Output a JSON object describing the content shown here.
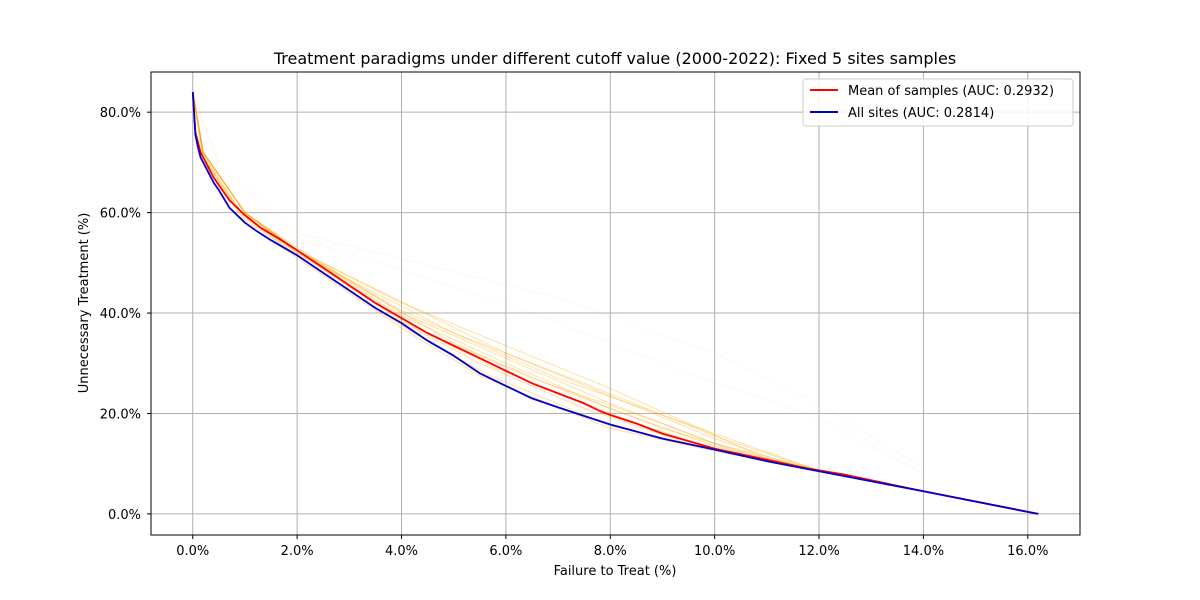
{
  "chart_data": {
    "type": "line",
    "title": "Treatment paradigms under different cutoff value (2000-2022): Fixed 5 sites samples",
    "xlabel": "Failure to Treat (%)",
    "ylabel": "Unnecessary Treatment (%)",
    "xlim": [
      -0.008,
      0.17
    ],
    "ylim": [
      -0.042,
      0.88
    ],
    "xticks": [
      0.0,
      0.02,
      0.04,
      0.06,
      0.08,
      0.1,
      0.12,
      0.14,
      0.16
    ],
    "xtick_labels": [
      "0.0%",
      "2.0%",
      "4.0%",
      "6.0%",
      "8.0%",
      "10.0%",
      "12.0%",
      "14.0%",
      "16.0%"
    ],
    "yticks": [
      0.0,
      0.2,
      0.4,
      0.6,
      0.8
    ],
    "ytick_labels": [
      "0.0%",
      "20.0%",
      "40.0%",
      "60.0%",
      "80.0%"
    ],
    "grid": true,
    "legend_position": "top-right",
    "series": [
      {
        "name": "Mean of samples (AUC: 0.2932)",
        "color": "#ff0000",
        "x": [
          0.0,
          0.0005,
          0.001,
          0.0015,
          0.002,
          0.003,
          0.004,
          0.005,
          0.007,
          0.01,
          0.013,
          0.017,
          0.02,
          0.025,
          0.03,
          0.035,
          0.04,
          0.045,
          0.05,
          0.055,
          0.058,
          0.06,
          0.065,
          0.07,
          0.075,
          0.078,
          0.08,
          0.085,
          0.09,
          0.095,
          0.1,
          0.11,
          0.118,
          0.125,
          0.14,
          0.162
        ],
        "y": [
          0.84,
          0.76,
          0.74,
          0.72,
          0.71,
          0.69,
          0.67,
          0.655,
          0.625,
          0.595,
          0.57,
          0.545,
          0.525,
          0.49,
          0.455,
          0.42,
          0.39,
          0.36,
          0.335,
          0.31,
          0.295,
          0.285,
          0.26,
          0.24,
          0.22,
          0.205,
          0.197,
          0.18,
          0.16,
          0.145,
          0.13,
          0.108,
          0.09,
          0.078,
          0.045,
          0.0
        ]
      },
      {
        "name": "All sites (AUC: 0.2814)",
        "color": "#0000cc",
        "x": [
          0.0,
          0.0005,
          0.001,
          0.0015,
          0.002,
          0.003,
          0.004,
          0.005,
          0.007,
          0.01,
          0.012,
          0.015,
          0.02,
          0.025,
          0.03,
          0.035,
          0.04,
          0.045,
          0.05,
          0.055,
          0.06,
          0.065,
          0.07,
          0.075,
          0.08,
          0.09,
          0.1,
          0.11,
          0.12,
          0.13,
          0.14,
          0.162
        ],
        "y": [
          0.84,
          0.755,
          0.73,
          0.71,
          0.7,
          0.68,
          0.66,
          0.645,
          0.61,
          0.58,
          0.565,
          0.545,
          0.515,
          0.48,
          0.445,
          0.41,
          0.38,
          0.345,
          0.315,
          0.28,
          0.255,
          0.23,
          0.212,
          0.195,
          0.178,
          0.15,
          0.128,
          0.105,
          0.085,
          0.065,
          0.045,
          0.0
        ]
      }
    ],
    "sample_series_color": "#ffa500",
    "sample_series": [
      {
        "x": [
          0.0,
          0.002,
          0.01,
          0.02,
          0.04,
          0.055,
          0.08,
          0.1,
          0.12,
          0.14,
          0.162
        ],
        "y": [
          0.84,
          0.71,
          0.58,
          0.51,
          0.37,
          0.275,
          0.17,
          0.125,
          0.085,
          0.045,
          0.0
        ]
      },
      {
        "x": [
          0.0,
          0.002,
          0.01,
          0.02,
          0.04,
          0.056,
          0.08,
          0.1,
          0.12,
          0.14,
          0.162
        ],
        "y": [
          0.84,
          0.71,
          0.585,
          0.515,
          0.375,
          0.28,
          0.175,
          0.128,
          0.086,
          0.045,
          0.0
        ]
      },
      {
        "x": [
          0.0,
          0.002,
          0.01,
          0.02,
          0.04,
          0.058,
          0.085,
          0.1,
          0.12,
          0.14,
          0.162
        ],
        "y": [
          0.84,
          0.715,
          0.59,
          0.52,
          0.385,
          0.29,
          0.18,
          0.13,
          0.086,
          0.045,
          0.0
        ]
      },
      {
        "x": [
          0.0,
          0.002,
          0.01,
          0.02,
          0.04,
          0.06,
          0.08,
          0.1,
          0.12,
          0.14,
          0.162
        ],
        "y": [
          0.84,
          0.72,
          0.6,
          0.525,
          0.395,
          0.3,
          0.21,
          0.135,
          0.087,
          0.045,
          0.0
        ]
      },
      {
        "x": [
          0.0,
          0.002,
          0.01,
          0.02,
          0.04,
          0.06,
          0.08,
          0.1,
          0.12,
          0.14,
          0.162
        ],
        "y": [
          0.84,
          0.72,
          0.6,
          0.53,
          0.4,
          0.31,
          0.22,
          0.14,
          0.088,
          0.045,
          0.0
        ]
      },
      {
        "x": [
          0.0,
          0.002,
          0.01,
          0.02,
          0.05,
          0.07,
          0.09,
          0.11,
          0.12,
          0.14,
          0.162
        ],
        "y": [
          0.84,
          0.72,
          0.6,
          0.525,
          0.34,
          0.25,
          0.17,
          0.11,
          0.088,
          0.045,
          0.0
        ]
      },
      {
        "x": [
          0.0,
          0.002,
          0.01,
          0.02,
          0.06,
          0.1,
          0.115,
          0.12,
          0.14,
          0.162
        ],
        "y": [
          0.84,
          0.72,
          0.6,
          0.525,
          0.32,
          0.15,
          0.098,
          0.086,
          0.045,
          0.0
        ]
      },
      {
        "x": [
          0.0,
          0.002,
          0.01,
          0.02,
          0.05,
          0.075,
          0.1,
          0.12,
          0.14,
          0.162
        ],
        "y": [
          0.84,
          0.72,
          0.6,
          0.52,
          0.36,
          0.26,
          0.155,
          0.086,
          0.045,
          0.0
        ]
      },
      {
        "x": [
          0.0,
          0.002,
          0.01,
          0.02,
          0.04,
          0.08,
          0.11,
          0.12,
          0.14,
          0.162
        ],
        "y": [
          0.84,
          0.72,
          0.6,
          0.525,
          0.42,
          0.25,
          0.11,
          0.087,
          0.045,
          0.0
        ]
      },
      {
        "x": [
          0.0,
          0.002,
          0.01,
          0.02,
          0.04,
          0.07,
          0.1,
          0.12,
          0.14,
          0.162
        ],
        "y": [
          0.84,
          0.72,
          0.6,
          0.525,
          0.405,
          0.27,
          0.16,
          0.086,
          0.045,
          0.0
        ]
      },
      {
        "x": [
          0.0,
          0.002,
          0.01,
          0.02,
          0.045,
          0.065,
          0.09,
          0.105,
          0.12,
          0.14,
          0.162
        ],
        "y": [
          0.84,
          0.72,
          0.6,
          0.52,
          0.36,
          0.27,
          0.18,
          0.12,
          0.087,
          0.045,
          0.0
        ]
      },
      {
        "x": [
          0.0,
          0.002,
          0.01,
          0.02,
          0.035,
          0.055,
          0.075,
          0.095,
          0.12,
          0.14,
          0.162
        ],
        "y": [
          0.84,
          0.71,
          0.59,
          0.515,
          0.41,
          0.3,
          0.21,
          0.14,
          0.086,
          0.045,
          0.0
        ]
      }
    ],
    "faint_series": [
      {
        "x": [
          0.0,
          0.005,
          0.02,
          0.07,
          0.1,
          0.12,
          0.14
        ],
        "y": [
          0.84,
          0.7,
          0.56,
          0.43,
          0.32,
          0.22,
          0.09
        ]
      },
      {
        "x": [
          0.0,
          0.005,
          0.02,
          0.06,
          0.09,
          0.12,
          0.14
        ],
        "y": [
          0.84,
          0.69,
          0.55,
          0.42,
          0.3,
          0.19,
          0.08
        ]
      }
    ]
  }
}
